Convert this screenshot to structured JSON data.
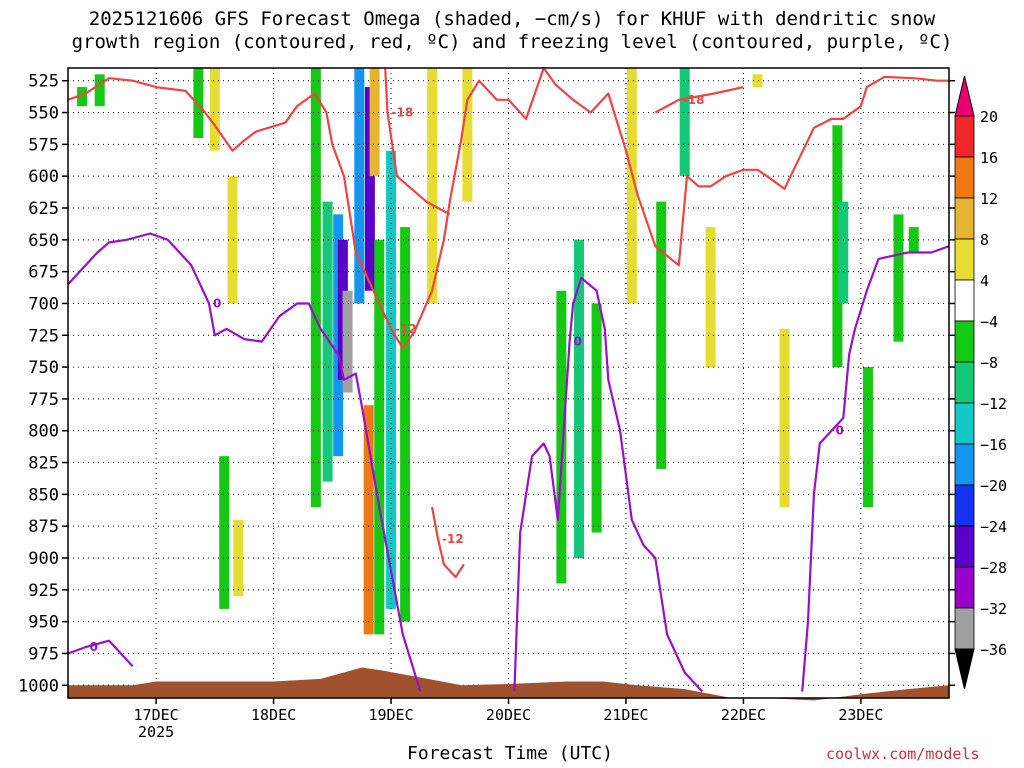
{
  "title": {
    "line1": "2025121606 GFS Forecast Omega (shaded, −cm/s) for KHUF with dendritic snow",
    "line2": "growth region (contoured, red, ºC) and freezing level (contoured, purple, ºC)"
  },
  "xlabel": "Forecast Time (UTC)",
  "credit": "coolwx.com/models",
  "chart_data": {
    "type": "heatmap",
    "y_axis": {
      "label": "",
      "unit": "hPa",
      "range": [
        515,
        1010
      ],
      "reversed": true,
      "ticks": [
        525,
        550,
        575,
        600,
        625,
        650,
        675,
        700,
        725,
        750,
        775,
        800,
        825,
        850,
        875,
        900,
        925,
        950,
        975,
        1000
      ]
    },
    "x_axis": {
      "range_days": [
        16.25,
        23.75
      ],
      "ticks": [
        {
          "day": 17,
          "label": "17DEC",
          "sub": "2025"
        },
        {
          "day": 18,
          "label": "18DEC",
          "sub": ""
        },
        {
          "day": 19,
          "label": "19DEC",
          "sub": ""
        },
        {
          "day": 20,
          "label": "20DEC",
          "sub": ""
        },
        {
          "day": 21,
          "label": "21DEC",
          "sub": ""
        },
        {
          "day": 22,
          "label": "22DEC",
          "sub": ""
        },
        {
          "day": 23,
          "label": "23DEC",
          "sub": ""
        }
      ]
    },
    "grid": true,
    "colorbar": {
      "labels": [
        "20",
        "16",
        "12",
        "8",
        "4",
        "−4",
        "−8",
        "−12",
        "−16",
        "−20",
        "−24",
        "−28",
        "−32",
        "−36"
      ],
      "colors": [
        "#e8006e",
        "#ee2828",
        "#f07814",
        "#e6b432",
        "#e6dc32",
        "#ffffff",
        "#14c814",
        "#14c878",
        "#14c8c8",
        "#1496f0",
        "#1432f0",
        "#5a00c8",
        "#9600c8",
        "#a0a0a0",
        "#000000"
      ]
    },
    "omega_shading": [
      {
        "day": 16.37,
        "p1": 530,
        "p2": 545,
        "value": -6
      },
      {
        "day": 16.52,
        "p1": 520,
        "p2": 545,
        "value": -6
      },
      {
        "day": 17.36,
        "p1": 515,
        "p2": 570,
        "value": -6
      },
      {
        "day": 17.5,
        "p1": 515,
        "p2": 580,
        "value": 5
      },
      {
        "day": 17.65,
        "p1": 600,
        "p2": 700,
        "value": 5
      },
      {
        "day": 17.58,
        "p1": 820,
        "p2": 940,
        "value": -6
      },
      {
        "day": 17.7,
        "p1": 870,
        "p2": 930,
        "value": 5
      },
      {
        "day": 18.36,
        "p1": 515,
        "p2": 860,
        "value": -6
      },
      {
        "day": 18.46,
        "p1": 620,
        "p2": 840,
        "value": -10
      },
      {
        "day": 18.55,
        "p1": 630,
        "p2": 820,
        "value": -20
      },
      {
        "day": 18.59,
        "p1": 650,
        "p2": 760,
        "value": -28
      },
      {
        "day": 18.63,
        "p1": 690,
        "p2": 770,
        "value": -34
      },
      {
        "day": 18.73,
        "p1": 515,
        "p2": 700,
        "value": -20
      },
      {
        "day": 18.82,
        "p1": 530,
        "p2": 690,
        "value": -28
      },
      {
        "day": 18.86,
        "p1": 515,
        "p2": 600,
        "value": 10
      },
      {
        "day": 18.81,
        "p1": 780,
        "p2": 960,
        "value": 14
      },
      {
        "day": 18.9,
        "p1": 650,
        "p2": 960,
        "value": -7
      },
      {
        "day": 19.0,
        "p1": 580,
        "p2": 940,
        "value": -14
      },
      {
        "day": 19.12,
        "p1": 640,
        "p2": 950,
        "value": -6
      },
      {
        "day": 19.35,
        "p1": 515,
        "p2": 700,
        "value": 5
      },
      {
        "day": 19.65,
        "p1": 515,
        "p2": 620,
        "value": 5
      },
      {
        "day": 20.45,
        "p1": 690,
        "p2": 920,
        "value": -6
      },
      {
        "day": 20.6,
        "p1": 650,
        "p2": 900,
        "value": -10
      },
      {
        "day": 20.75,
        "p1": 700,
        "p2": 880,
        "value": -6
      },
      {
        "day": 21.05,
        "p1": 515,
        "p2": 700,
        "value": 5
      },
      {
        "day": 21.3,
        "p1": 620,
        "p2": 830,
        "value": -6
      },
      {
        "day": 21.5,
        "p1": 515,
        "p2": 600,
        "value": -10
      },
      {
        "day": 21.72,
        "p1": 640,
        "p2": 750,
        "value": 5
      },
      {
        "day": 22.12,
        "p1": 520,
        "p2": 530,
        "value": 5
      },
      {
        "day": 22.35,
        "p1": 720,
        "p2": 860,
        "value": 5
      },
      {
        "day": 22.8,
        "p1": 560,
        "p2": 750,
        "value": -6
      },
      {
        "day": 22.85,
        "p1": 620,
        "p2": 700,
        "value": -10
      },
      {
        "day": 23.06,
        "p1": 750,
        "p2": 860,
        "value": -6
      },
      {
        "day": 23.32,
        "p1": 630,
        "p2": 730,
        "value": -6
      },
      {
        "day": 23.45,
        "p1": 640,
        "p2": 660,
        "value": -6
      }
    ],
    "dgz_contours": [
      {
        "name": "-12 upper",
        "label": "-12",
        "points": [
          [
            16.25,
            540
          ],
          [
            16.4,
            535
          ],
          [
            16.6,
            523
          ],
          [
            16.8,
            525
          ],
          [
            17.0,
            530
          ],
          [
            17.25,
            533
          ],
          [
            17.4,
            548
          ],
          [
            17.5,
            560
          ],
          [
            17.65,
            580
          ],
          [
            17.75,
            572
          ],
          [
            17.85,
            565
          ],
          [
            18.1,
            558
          ],
          [
            18.2,
            545
          ],
          [
            18.35,
            535
          ],
          [
            18.45,
            550
          ],
          [
            18.5,
            575
          ],
          [
            18.6,
            600
          ],
          [
            18.7,
            660
          ],
          [
            18.9,
            700
          ],
          [
            19.0,
            720
          ],
          [
            19.1,
            735
          ],
          [
            19.2,
            722
          ],
          [
            19.35,
            690
          ],
          [
            19.45,
            650
          ],
          [
            19.5,
            620
          ],
          [
            19.6,
            570
          ],
          [
            19.65,
            540
          ],
          [
            19.75,
            525
          ],
          [
            19.9,
            540
          ],
          [
            20.0,
            540
          ],
          [
            20.15,
            555
          ],
          [
            20.3,
            515
          ],
          [
            20.4,
            528
          ],
          [
            20.55,
            540
          ],
          [
            20.7,
            550
          ],
          [
            20.85,
            535
          ],
          [
            21.0,
            580
          ],
          [
            21.1,
            615
          ],
          [
            21.25,
            655
          ],
          [
            21.45,
            670
          ],
          [
            21.52,
            600
          ],
          [
            21.62,
            608
          ],
          [
            21.72,
            608
          ],
          [
            21.85,
            600
          ],
          [
            22.0,
            595
          ],
          [
            22.12,
            595
          ],
          [
            22.2,
            600
          ],
          [
            22.35,
            610
          ],
          [
            22.6,
            562
          ],
          [
            22.75,
            555
          ],
          [
            22.85,
            555
          ],
          [
            23.0,
            545
          ],
          [
            23.05,
            530
          ],
          [
            23.2,
            522
          ],
          [
            23.45,
            523
          ],
          [
            23.65,
            525
          ],
          [
            23.75,
            525
          ]
        ]
      },
      {
        "name": "-12 lower",
        "label": "-12",
        "points": [
          [
            19.35,
            860
          ],
          [
            19.4,
            885
          ],
          [
            19.45,
            905
          ],
          [
            19.55,
            915
          ],
          [
            19.62,
            905
          ]
        ]
      },
      {
        "name": "-18 hook",
        "label": "-18",
        "points": [
          [
            18.95,
            515
          ],
          [
            18.97,
            550
          ],
          [
            19.05,
            600
          ],
          [
            19.3,
            620
          ],
          [
            19.5,
            630
          ]
        ]
      },
      {
        "name": "-18 right",
        "label": "-18",
        "points": [
          [
            21.25,
            550
          ],
          [
            21.45,
            540
          ],
          [
            21.75,
            535
          ],
          [
            22.0,
            530
          ]
        ]
      }
    ],
    "freezing_contours": [
      {
        "name": "0 left",
        "label": "0",
        "points": [
          [
            16.25,
            685
          ],
          [
            16.35,
            675
          ],
          [
            16.5,
            660
          ],
          [
            16.6,
            652
          ],
          [
            16.75,
            650
          ],
          [
            16.95,
            645
          ],
          [
            17.1,
            650
          ],
          [
            17.3,
            670
          ],
          [
            17.45,
            700
          ],
          [
            17.5,
            725
          ],
          [
            17.6,
            720
          ],
          [
            17.75,
            728
          ],
          [
            17.9,
            730
          ],
          [
            18.05,
            710
          ],
          [
            18.2,
            700
          ],
          [
            18.3,
            700
          ],
          [
            18.4,
            720
          ],
          [
            18.55,
            740
          ],
          [
            18.6,
            760
          ],
          [
            18.7,
            755
          ],
          [
            18.75,
            780
          ],
          [
            18.9,
            860
          ],
          [
            19.0,
            910
          ],
          [
            19.1,
            960
          ],
          [
            19.25,
            1005
          ]
        ]
      },
      {
        "name": "0 middle",
        "label": "0",
        "points": [
          [
            20.05,
            1005
          ],
          [
            20.1,
            880
          ],
          [
            20.2,
            820
          ],
          [
            20.3,
            810
          ],
          [
            20.35,
            820
          ],
          [
            20.42,
            870
          ],
          [
            20.47,
            800
          ],
          [
            20.52,
            730
          ],
          [
            20.55,
            700
          ],
          [
            20.62,
            680
          ],
          [
            20.75,
            690
          ],
          [
            20.82,
            720
          ],
          [
            20.85,
            760
          ],
          [
            20.95,
            800
          ],
          [
            21.05,
            870
          ],
          [
            21.15,
            890
          ],
          [
            21.25,
            900
          ],
          [
            21.35,
            960
          ],
          [
            21.5,
            990
          ],
          [
            21.65,
            1005
          ]
        ]
      },
      {
        "name": "0 right",
        "label": "0",
        "points": [
          [
            22.5,
            1005
          ],
          [
            22.55,
            950
          ],
          [
            22.6,
            850
          ],
          [
            22.65,
            810
          ],
          [
            22.75,
            800
          ],
          [
            22.85,
            790
          ],
          [
            22.9,
            740
          ],
          [
            22.95,
            720
          ],
          [
            23.05,
            690
          ],
          [
            23.15,
            665
          ],
          [
            23.4,
            660
          ],
          [
            23.6,
            660
          ],
          [
            23.75,
            655
          ]
        ]
      },
      {
        "name": "0 bottom",
        "label": "0",
        "points": [
          [
            16.25,
            975
          ],
          [
            16.4,
            970
          ],
          [
            16.6,
            965
          ],
          [
            16.7,
            975
          ],
          [
            16.8,
            985
          ]
        ]
      }
    ],
    "terrain_pressure": [
      [
        16.25,
        1000
      ],
      [
        16.8,
        1000
      ],
      [
        17.0,
        997
      ],
      [
        17.5,
        997
      ],
      [
        18.0,
        997
      ],
      [
        18.4,
        995
      ],
      [
        18.6,
        990
      ],
      [
        18.75,
        986
      ],
      [
        18.9,
        988
      ],
      [
        19.2,
        993
      ],
      [
        19.6,
        1000
      ],
      [
        20.0,
        999
      ],
      [
        20.5,
        997
      ],
      [
        20.8,
        997
      ],
      [
        21.1,
        1000
      ],
      [
        21.5,
        1003
      ],
      [
        21.9,
        1010
      ],
      [
        22.2,
        1010
      ],
      [
        22.6,
        1012
      ],
      [
        23.0,
        1007
      ],
      [
        23.4,
        1003
      ],
      [
        23.75,
        1000
      ]
    ]
  }
}
